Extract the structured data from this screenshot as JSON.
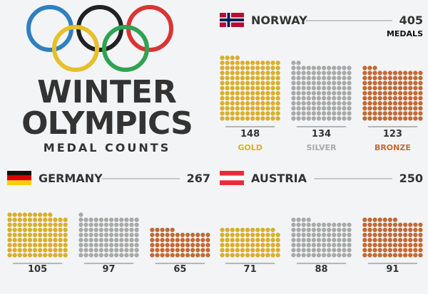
{
  "header": {
    "title_line1": "WINTER",
    "title_line2": "OLYMPICS",
    "subtitle": "MEDAL COUNTS"
  },
  "colors": {
    "gold": "#d9ae2c",
    "silver": "#a9a9a9",
    "bronze": "#c06a36",
    "text": "#333333"
  },
  "chart_data": [
    {
      "type": "bar",
      "country": "NORWAY",
      "total": "405",
      "total_suffix": "MEDALS",
      "flag": "norway-flag-icon",
      "categories": [
        "GOLD",
        "SILVER",
        "BRONZE"
      ],
      "values": [
        148,
        134,
        123
      ]
    },
    {
      "type": "bar",
      "country": "GERMANY",
      "total": "267",
      "flag": "germany-flag-icon",
      "categories": [
        "",
        "",
        ""
      ],
      "values": [
        105,
        97,
        65
      ]
    },
    {
      "type": "bar",
      "country": "AUSTRIA",
      "total": "250",
      "flag": "austria-flag-icon",
      "categories": [
        "",
        "",
        ""
      ],
      "values": [
        71,
        88,
        91
      ]
    }
  ]
}
